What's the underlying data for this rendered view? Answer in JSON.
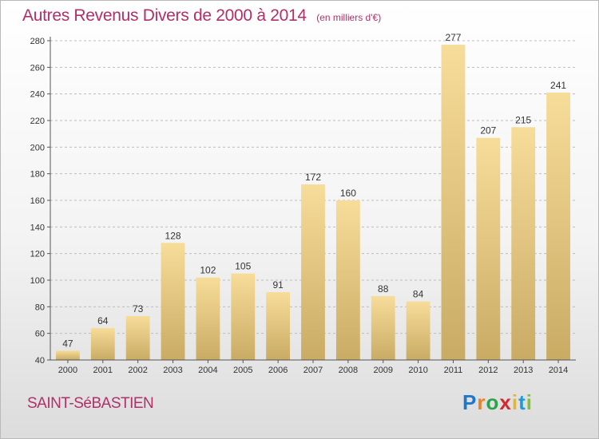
{
  "title": "Autres Revenus Divers de 2000 à 2014",
  "subtitle": "(en milliers d'€)",
  "location": "SAINT-SéBASTIEN",
  "brand": {
    "letters": [
      "P",
      "r",
      "o",
      "x",
      "i",
      "t",
      "i"
    ],
    "colors": [
      "#1f77c9",
      "#e8812a",
      "#2aa34a",
      "#d4282d",
      "#e8b42a",
      "#1f9ad6",
      "#7fbf3a"
    ]
  },
  "chart_data": {
    "type": "bar",
    "categories": [
      "2000",
      "2001",
      "2002",
      "2003",
      "2004",
      "2005",
      "2006",
      "2007",
      "2008",
      "2009",
      "2010",
      "2011",
      "2012",
      "2013",
      "2014"
    ],
    "values": [
      47,
      64,
      73,
      128,
      102,
      105,
      91,
      172,
      160,
      88,
      84,
      277,
      207,
      215,
      241
    ],
    "ylim": [
      40,
      280
    ],
    "yticks": [
      40,
      60,
      80,
      100,
      120,
      140,
      160,
      180,
      200,
      220,
      240,
      260,
      280
    ],
    "grid": true,
    "bar_color": "#e8c57a",
    "xlabel": "",
    "ylabel": ""
  }
}
